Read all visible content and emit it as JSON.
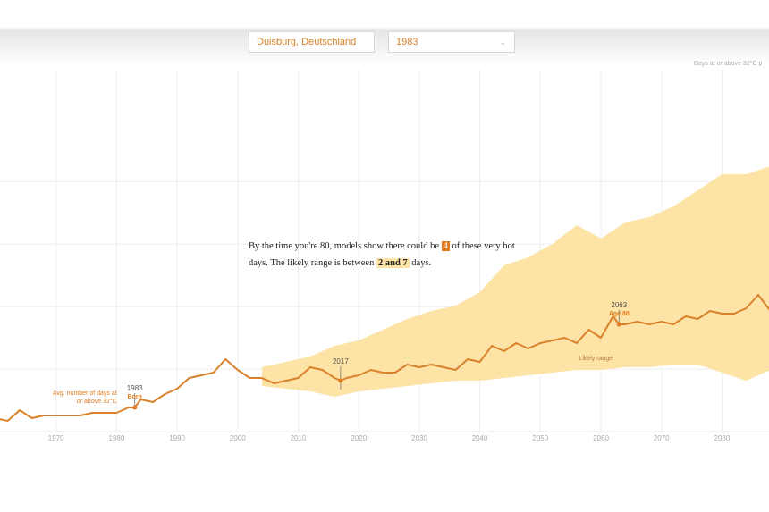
{
  "selectors": {
    "location": "Duisburg, Deutschland",
    "year": "1983"
  },
  "legend_note": "Days at or above 32°C p",
  "annotation": {
    "prefix": "By the time you're 80, models show there could be",
    "value": "4",
    "middle": "of these very hot days. The likely range is between",
    "range": "2 and 7",
    "suffix": "days."
  },
  "colors": {
    "line": "#d9822b",
    "band": "#fde3a6",
    "grid": "#eeeeee",
    "text_accent": "#e07b20"
  },
  "chart_data": {
    "type": "area",
    "x_ticks": [
      1970,
      1980,
      1990,
      2000,
      2010,
      2020,
      2030,
      2040,
      2050,
      2060,
      2070,
      2080
    ],
    "x_range": [
      1960,
      2088
    ],
    "y_range": [
      0,
      11.5
    ],
    "grid": true,
    "series": [
      {
        "kind": "line",
        "x": [
          1960,
          1962,
          1964,
          1966,
          1968,
          1970,
          1972,
          1974,
          1976,
          1978,
          1980,
          1982,
          1983,
          1984,
          1986,
          1988,
          1990,
          1992,
          1994,
          1996,
          1998,
          2000,
          2002,
          2004,
          2006,
          2008,
          2010,
          2012,
          2014,
          2016,
          2017,
          2018,
          2020,
          2022,
          2024,
          2026,
          2028,
          2030,
          2032,
          2034,
          2036,
          2038,
          2040,
          2042,
          2044,
          2046,
          2048,
          2050,
          2052,
          2054,
          2056,
          2058,
          2060,
          2062,
          2063,
          2064,
          2066,
          2068,
          2070,
          2072,
          2074,
          2076,
          2078,
          2080,
          2082,
          2084,
          2086,
          2088
        ],
        "y": [
          0.5,
          0.4,
          0.8,
          0.5,
          0.6,
          0.6,
          0.6,
          0.6,
          0.7,
          0.7,
          0.7,
          0.9,
          0.9,
          1.2,
          1.1,
          1.4,
          1.6,
          2.0,
          2.1,
          2.2,
          2.7,
          2.3,
          2.0,
          2.0,
          1.8,
          1.9,
          2.0,
          2.4,
          2.3,
          2.0,
          1.9,
          2.0,
          2.1,
          2.3,
          2.2,
          2.2,
          2.5,
          2.4,
          2.5,
          2.4,
          2.3,
          2.7,
          2.6,
          3.2,
          3.0,
          3.3,
          3.1,
          3.3,
          3.4,
          3.5,
          3.3,
          3.8,
          3.5,
          4.3,
          4.0,
          4.0,
          4.1,
          4.0,
          4.1,
          4.0,
          4.3,
          4.2,
          4.5,
          4.4,
          4.4,
          4.6,
          5.1,
          4.5
        ]
      },
      {
        "kind": "band",
        "name": "Likely range",
        "x": [
          2004,
          2008,
          2012,
          2016,
          2020,
          2024,
          2028,
          2032,
          2036,
          2040,
          2044,
          2048,
          2052,
          2056,
          2060,
          2064,
          2068,
          2072,
          2076,
          2080,
          2084,
          2088
        ],
        "upper": [
          2.4,
          2.6,
          2.8,
          3.2,
          3.4,
          3.8,
          4.2,
          4.5,
          4.7,
          5.2,
          6.2,
          6.5,
          7.0,
          7.7,
          7.2,
          7.8,
          8.0,
          8.4,
          9.0,
          9.6,
          9.6,
          9.9
        ],
        "lower": [
          1.7,
          1.6,
          1.5,
          1.3,
          1.5,
          1.6,
          1.7,
          1.8,
          1.9,
          1.9,
          2.0,
          2.1,
          2.2,
          2.3,
          2.3,
          2.4,
          2.4,
          2.5,
          2.5,
          2.2,
          1.9,
          2.3
        ]
      }
    ],
    "annotations": [
      {
        "x": 1983,
        "y": 0.9,
        "year_label": "1983",
        "sub_label": "Born",
        "note": "Avg. number of days at or above 32°C"
      },
      {
        "x": 2017,
        "y": 1.9,
        "year_label": "2017"
      },
      {
        "x": 2063,
        "y": 4.0,
        "year_label": "2063",
        "sub_label": "Age 80",
        "note": "Likely range"
      }
    ]
  }
}
